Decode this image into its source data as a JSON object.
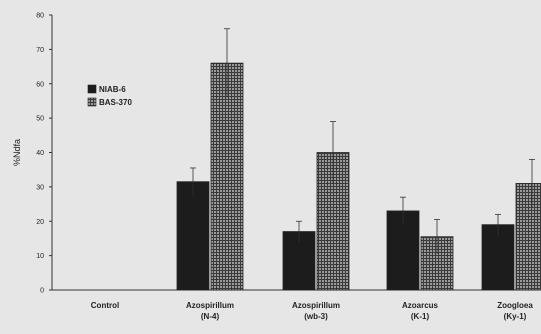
{
  "chart_data": {
    "type": "bar",
    "title": "",
    "xlabel": "",
    "ylabel": "%Ndfa",
    "ylim": [
      0,
      80
    ],
    "yticks": [
      0,
      10,
      20,
      30,
      40,
      50,
      60,
      70,
      80
    ],
    "categories": [
      [
        "Control"
      ],
      [
        "Azospirillum",
        "(N-4)"
      ],
      [
        "Azospirillum",
        "(wb-3)"
      ],
      [
        "Azoarcus",
        "(K-1)"
      ],
      [
        "Zoogloea",
        "(Ky-1)"
      ]
    ],
    "series": [
      {
        "name": "NIAB-6",
        "values": [
          0,
          31.5,
          17,
          23,
          19
        ],
        "errors": [
          0,
          4,
          3,
          4,
          3
        ],
        "color": "#1c1c1c"
      },
      {
        "name": "BAS-370",
        "values": [
          0,
          66,
          40,
          15.5,
          31
        ],
        "errors": [
          0,
          10,
          9,
          5,
          7
        ],
        "color": "#777777"
      }
    ],
    "legend": "upper-left",
    "grid": false
  }
}
